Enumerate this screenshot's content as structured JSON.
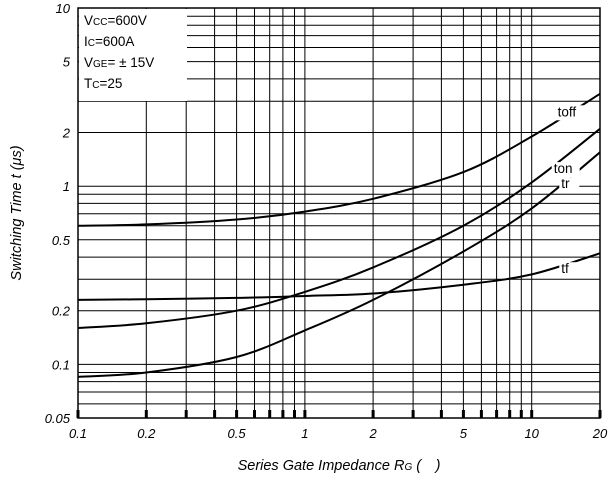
{
  "chart_data": {
    "type": "line",
    "xlabel": {
      "main": "Series Gate Impedance ",
      "var": "R",
      "sub": "G",
      "unit": " (　)"
    },
    "ylabel": {
      "main": "Switching Time ",
      "var": "t",
      "unit": " (μs)"
    },
    "xscale": "log",
    "yscale": "log",
    "xlim": [
      0.1,
      20
    ],
    "ylim": [
      0.05,
      10
    ],
    "grid": true,
    "x_ticks": [
      0.1,
      0.2,
      0.5,
      1,
      2,
      5,
      10,
      20
    ],
    "x_tick_labels": [
      "0.1",
      "0.2",
      "0.5",
      "1",
      "2",
      "5",
      "10",
      "20"
    ],
    "y_ticks": [
      0.05,
      0.1,
      0.2,
      0.5,
      1,
      2,
      5,
      10
    ],
    "y_tick_labels": [
      "0.05",
      "0.1",
      "0.2",
      "0.5",
      "1",
      "2",
      "5",
      "10"
    ],
    "conditions": [
      {
        "pre": "V",
        "sub": "CC",
        "post": "=600V"
      },
      {
        "pre": "I",
        "sub": "C",
        "post": "=600A"
      },
      {
        "pre": "V",
        "sub": "GE",
        "post": "= ± 15V"
      },
      {
        "pre": "T",
        "sub": "C",
        "post": "=25"
      }
    ],
    "series": [
      {
        "name": "toff",
        "x": [
          0.1,
          0.2,
          0.5,
          1,
          2,
          5,
          10,
          20
        ],
        "values": [
          0.6,
          0.61,
          0.65,
          0.72,
          0.85,
          1.2,
          1.9,
          3.3
        ]
      },
      {
        "name": "ton",
        "x": [
          0.1,
          0.2,
          0.5,
          1,
          2,
          5,
          10,
          20
        ],
        "values": [
          0.16,
          0.17,
          0.2,
          0.255,
          0.35,
          0.6,
          1.05,
          2.1
        ]
      },
      {
        "name": "tr",
        "x": [
          0.1,
          0.2,
          0.5,
          1,
          2,
          5,
          10,
          20
        ],
        "values": [
          0.085,
          0.09,
          0.11,
          0.155,
          0.23,
          0.43,
          0.75,
          1.55
        ]
      },
      {
        "name": "tf",
        "x": [
          0.1,
          0.2,
          0.5,
          1,
          2,
          5,
          10,
          20
        ],
        "values": [
          0.23,
          0.232,
          0.236,
          0.242,
          0.25,
          0.28,
          0.32,
          0.42
        ]
      }
    ]
  }
}
